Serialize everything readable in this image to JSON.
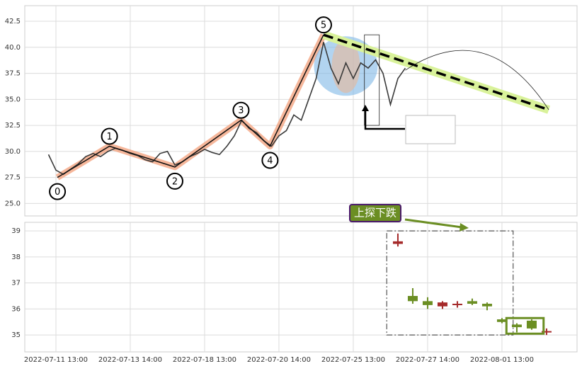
{
  "chart_data": [
    {
      "type": "line",
      "x": [
        -1,
        0,
        1,
        2,
        3,
        4,
        5,
        6,
        7,
        8,
        9,
        10,
        11,
        12,
        13,
        14,
        15,
        16,
        17,
        18,
        19,
        20,
        21,
        22,
        23,
        24,
        25,
        26,
        27,
        28,
        29,
        30,
        31,
        32,
        33,
        34,
        35,
        36,
        37,
        38,
        39,
        40,
        41,
        42,
        43,
        44,
        45,
        46,
        47
      ],
      "values": [
        29.7,
        28.2,
        27.8,
        28.3,
        28.8,
        29.5,
        29.8,
        29.5,
        30.0,
        30.3,
        30.1,
        29.8,
        29.6,
        29.2,
        29.0,
        29.8,
        30.0,
        28.7,
        29.0,
        29.5,
        29.8,
        30.2,
        29.9,
        29.7,
        30.5,
        31.5,
        33.0,
        32.2,
        31.8,
        31.0,
        30.5,
        31.5,
        32.0,
        33.5,
        33.0,
        35.0,
        37.0,
        40.5,
        38.0,
        36.5,
        38.5,
        37.0,
        38.5,
        38.0,
        38.8,
        37.5,
        34.5,
        37.0,
        38.0
      ],
      "color": "#3a3a3a",
      "xlim": [
        -4.19,
        70.1
      ],
      "ylim": [
        23.8,
        44.0
      ],
      "yticks": [
        {
          "value": 25,
          "label": "25.0"
        },
        {
          "value": 27.5,
          "label": "27.5"
        },
        {
          "value": 30,
          "label": "30.0"
        },
        {
          "value": 32.5,
          "label": "32.5"
        },
        {
          "value": 35,
          "label": "35.0"
        },
        {
          "value": 37.5,
          "label": "37.5"
        },
        {
          "value": 40,
          "label": "40.0"
        },
        {
          "value": 42.5,
          "label": "42.5"
        }
      ],
      "grid": true,
      "wave": {
        "x": [
          0.2,
          7.2,
          16,
          24.9,
          28.8,
          36
        ],
        "values": [
          27.5,
          30.5,
          28.5,
          33.0,
          30.5,
          41.2
        ],
        "labels": [
          "0",
          "1",
          "2",
          "3",
          "4",
          "5"
        ]
      },
      "trendline": {
        "x": [
          36,
          66.3
        ],
        "values": [
          41.2,
          34.0
        ]
      }
    },
    {
      "type": "candlestick",
      "x": [
        46,
        48,
        50,
        52,
        54,
        56,
        58,
        60,
        62,
        64,
        66
      ],
      "open": [
        38.6,
        36.3,
        36.15,
        36.25,
        36.2,
        36.2,
        36.1,
        35.5,
        35.3,
        35.25,
        35.15
      ],
      "high": [
        38.9,
        36.8,
        36.45,
        36.3,
        36.3,
        36.4,
        36.25,
        35.65,
        35.45,
        35.6,
        35.25
      ],
      "low": [
        38.4,
        36.2,
        36.0,
        36.0,
        36.05,
        36.15,
        35.95,
        35.45,
        35.1,
        35.2,
        35.0
      ],
      "close": [
        38.5,
        36.5,
        36.3,
        36.1,
        36.15,
        36.3,
        36.2,
        35.6,
        35.4,
        35.55,
        35.1
      ],
      "up_color": "#6b8e23",
      "down_color": "#a52a2a",
      "xlim": [
        -4.19,
        70.1
      ],
      "ylim": [
        34.35,
        39.33
      ],
      "yticks": [
        35,
        36,
        37,
        38,
        39
      ],
      "xticks": [
        {
          "value": 0,
          "label": "2022-07-11 13:00"
        },
        {
          "value": 10,
          "label": "2022-07-13 14:00"
        },
        {
          "value": 20,
          "label": "2022-07-18 13:00"
        },
        {
          "value": 30,
          "label": "2022-07-20 14:00"
        },
        {
          "value": 40,
          "label": "2022-07-25 13:00"
        },
        {
          "value": 50,
          "label": "2022-07-27 14:00"
        },
        {
          "value": 60,
          "label": "2022-08-01 13:00"
        }
      ],
      "grid": true,
      "annotation": "上探下跌"
    }
  ]
}
